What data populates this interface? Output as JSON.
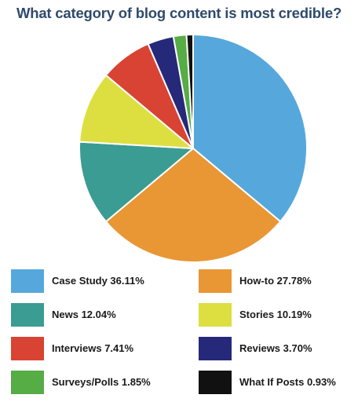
{
  "chart_data": {
    "type": "pie",
    "title": "What category of blog content is most credible?",
    "slices": [
      {
        "label": "Case Study 36.11%",
        "value": 36.11,
        "color": "#56a8dc"
      },
      {
        "label": "How-to 27.78%",
        "value": 27.78,
        "color": "#e99635"
      },
      {
        "label": "News 12.04%",
        "value": 12.04,
        "color": "#3a9c92"
      },
      {
        "label": "Stories 10.19%",
        "value": 10.19,
        "color": "#dddf41"
      },
      {
        "label": "Interviews 7.41%",
        "value": 7.41,
        "color": "#d94333"
      },
      {
        "label": "Reviews 3.70%",
        "value": 3.7,
        "color": "#26287a"
      },
      {
        "label": "Surveys/Polls 1.85%",
        "value": 1.85,
        "color": "#56ac45"
      },
      {
        "label": "What If Posts 0.93%",
        "value": 0.93,
        "color": "#111111"
      }
    ],
    "slice_order_clockwise_from_top": [
      "Case Study 36.11%",
      "How-to 27.78%",
      "News 12.04%",
      "Stories 10.19%",
      "Interviews 7.41%",
      "Reviews 3.70%",
      "Surveys/Polls 1.85%",
      "What If Posts 0.93%"
    ],
    "legend_placement": "bottom",
    "legend_layout": "two columns",
    "slice_border_color": "#ffffff"
  }
}
